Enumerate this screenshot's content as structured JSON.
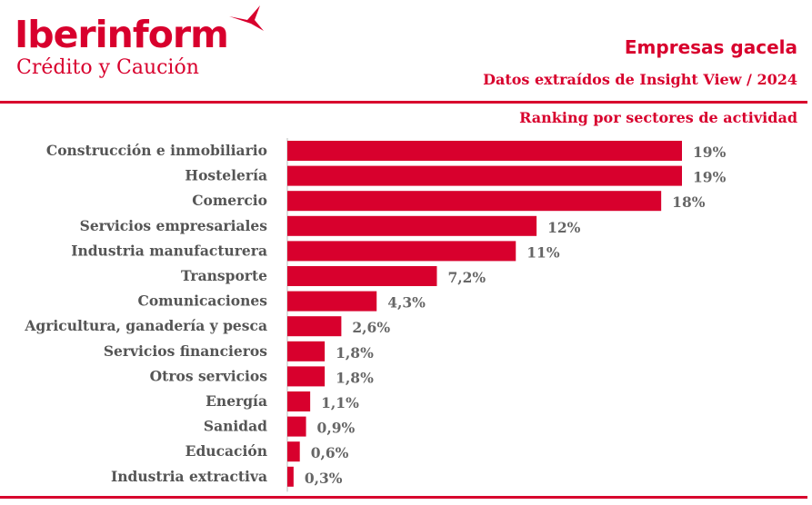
{
  "header": {
    "brand_name": "Iberinform",
    "brand_sub": "Crédito y Caución",
    "title": "Empresas gacela",
    "subtitle": "Datos extraídos de Insight View / 2024",
    "ranking_label": "Ranking por sectores de actividad"
  },
  "colors": {
    "accent": "#d8002d",
    "label": "#555555",
    "axis": "#bbbbbb"
  },
  "chart_data": {
    "type": "bar",
    "orientation": "horizontal",
    "title": "Ranking por sectores de actividad",
    "xlabel": "",
    "ylabel": "",
    "categories": [
      "Construcción e inmobiliario",
      "Hostelería",
      "Comercio",
      "Servicios empresariales",
      "Industria manufacturera",
      "Transporte",
      "Comunicaciones",
      "Agricultura, ganadería y pesca",
      "Servicios financieros",
      "Otros servicios",
      "Energía",
      "Sanidad",
      "Educación",
      "Industria extractiva"
    ],
    "values": [
      19,
      19,
      18,
      12,
      11,
      7.2,
      4.3,
      2.6,
      1.8,
      1.8,
      1.1,
      0.9,
      0.6,
      0.3
    ],
    "value_labels": [
      "19%",
      "19%",
      "18%",
      "12%",
      "11%",
      "7,2%",
      "4,3%",
      "2,6%",
      "1,8%",
      "1,8%",
      "1,1%",
      "0,9%",
      "0,6%",
      "0,3%"
    ],
    "unit": "%",
    "xlim": [
      0,
      25
    ],
    "grid": false,
    "legend": "none"
  }
}
